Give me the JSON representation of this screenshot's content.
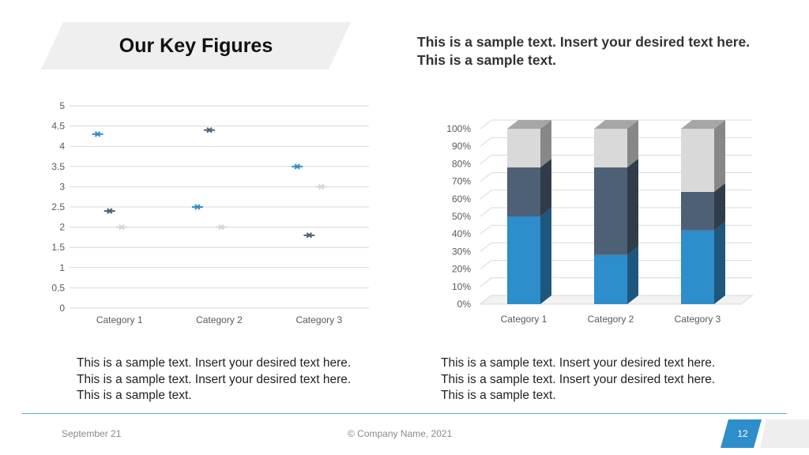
{
  "slide": {
    "title": "Our Key Figures",
    "headline": "This is a sample text.  Insert your desired text here. This is a sample text.",
    "body_left": "This is a sample text.  Insert your desired text here. This is a sample text.  Insert your desired text here. This is a sample text.",
    "body_right": "This is a sample text.  Insert your desired text here. This is a sample text.  Insert your desired text here. This is a sample text."
  },
  "footer": {
    "date": "September 21",
    "company": "© Company Name, 2021",
    "page_number": "12"
  },
  "colors": {
    "accent": "#2E8DCB",
    "dark": "#4D6075",
    "light": "#D4D4D4"
  },
  "chart_data": [
    {
      "type": "scatter",
      "categories": [
        "Category 1",
        "Category 2",
        "Category 3"
      ],
      "series": [
        {
          "values": [
            4.3,
            2.5,
            3.5
          ],
          "color": "#2E8DCB"
        },
        {
          "values": [
            2.4,
            4.4,
            1.8
          ],
          "color": "#4D6075"
        },
        {
          "values": [
            2.0,
            2.0,
            3.0
          ],
          "color": "#D4D4D4"
        }
      ],
      "ylim": [
        0,
        5
      ],
      "yticks": [
        "0",
        "0.5",
        "1",
        "1.5",
        "2",
        "2.5",
        "3",
        "3.5",
        "4",
        "4.5",
        "5"
      ],
      "grid": true
    },
    {
      "type": "bar",
      "stacked": "percent",
      "three_d": true,
      "categories": [
        "Category 1",
        "Category 2",
        "Category 3"
      ],
      "series": [
        {
          "values": [
            50,
            28,
            42
          ],
          "color": "#2E8DCB"
        },
        {
          "values": [
            28,
            50,
            22
          ],
          "color": "#4D6075"
        },
        {
          "values": [
            22,
            22,
            36
          ],
          "color": "#D9D9D9"
        }
      ],
      "ylim": [
        0,
        100
      ],
      "yticks": [
        "0%",
        "10%",
        "20%",
        "30%",
        "40%",
        "50%",
        "60%",
        "70%",
        "80%",
        "90%",
        "100%"
      ],
      "grid": true
    }
  ]
}
